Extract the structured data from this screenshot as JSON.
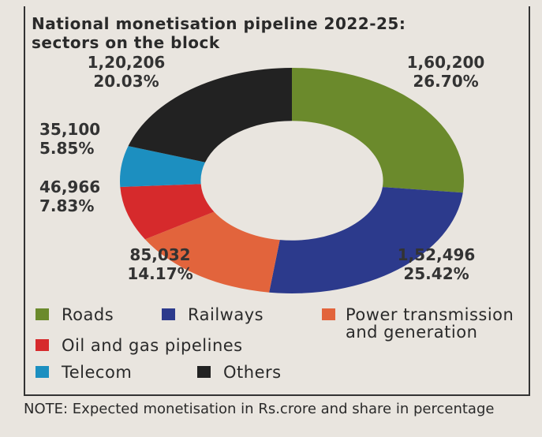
{
  "chart_data": {
    "type": "donut",
    "title": "National monetisation pipeline 2022-25:",
    "subtitle": "sectors on the block",
    "categories": [
      "Roads",
      "Railways",
      "Power transmission and generation",
      "Oil and gas pipelines",
      "Telecom",
      "Others"
    ],
    "values": [
      160200,
      152496,
      85032,
      46966,
      35100,
      120206
    ],
    "value_labels": [
      "1,60,200",
      "1,52,496",
      "85,032",
      "46,966",
      "35,100",
      "1,20,206"
    ],
    "shares": [
      26.7,
      25.42,
      14.17,
      7.83,
      5.85,
      20.03
    ],
    "share_labels": [
      "26.70%",
      "25.42%",
      "14.17%",
      "7.83%",
      "5.85%",
      "20.03%"
    ],
    "colors": [
      "#6b8a2c",
      "#2c3a8c",
      "#e2643c",
      "#d62a2c",
      "#1c8fc0",
      "#222222"
    ],
    "note": "NOTE: Expected monetisation in Rs.crore and share in percentage"
  }
}
